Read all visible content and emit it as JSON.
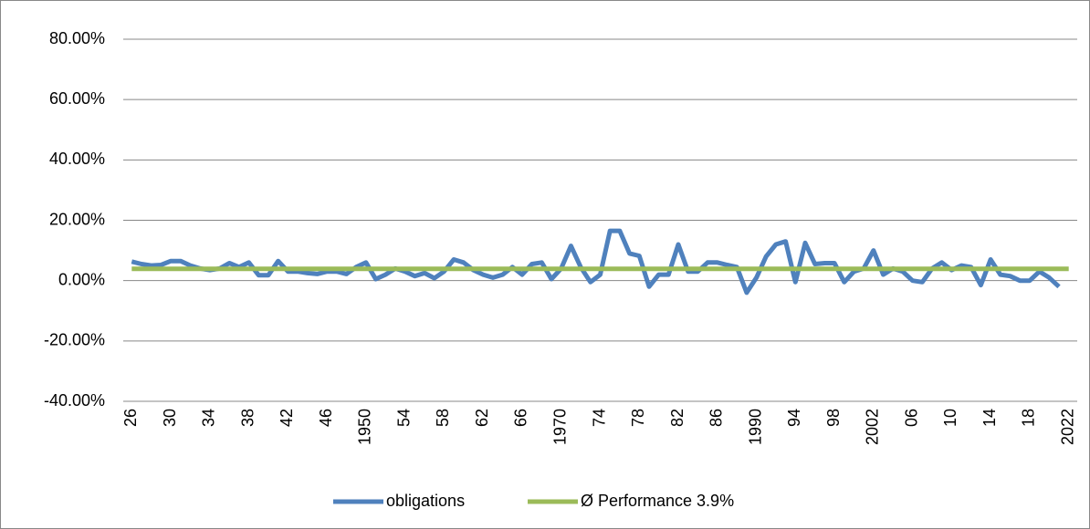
{
  "chart_data": {
    "type": "line",
    "categories": [
      "26",
      null,
      null,
      null,
      "30",
      null,
      null,
      null,
      "34",
      null,
      null,
      null,
      "38",
      null,
      null,
      null,
      "42",
      null,
      null,
      null,
      "46",
      null,
      null,
      null,
      "1950",
      null,
      null,
      null,
      "54",
      null,
      null,
      null,
      "58",
      null,
      null,
      null,
      "62",
      null,
      null,
      null,
      "66",
      null,
      null,
      null,
      "1970",
      null,
      null,
      null,
      "74",
      null,
      null,
      null,
      "78",
      null,
      null,
      null,
      "82",
      null,
      null,
      null,
      "86",
      null,
      null,
      null,
      "1990",
      null,
      null,
      null,
      "94",
      null,
      null,
      null,
      "98",
      null,
      null,
      null,
      "2002",
      null,
      null,
      null,
      "06",
      null,
      null,
      null,
      "10",
      null,
      null,
      null,
      "14",
      null,
      null,
      null,
      "18",
      null,
      null,
      null,
      "2022"
    ],
    "series": [
      {
        "name": "obligations",
        "color": "#4f81bd",
        "values": [
          6.3,
          5.5,
          5.0,
          5.2,
          6.5,
          6.5,
          5.0,
          4.0,
          3.5,
          4.0,
          5.8,
          4.5,
          6.0,
          1.8,
          1.8,
          6.5,
          3.0,
          3.0,
          2.5,
          2.2,
          3.0,
          3.0,
          2.2,
          4.5,
          6.0,
          0.5,
          2.0,
          4.0,
          3.0,
          1.5,
          2.5,
          0.8,
          3.0,
          7.0,
          6.0,
          3.5,
          2.0,
          1.0,
          2.0,
          4.5,
          2.0,
          5.5,
          6.0,
          0.5,
          4.0,
          11.5,
          4.5,
          -0.5,
          2.0,
          16.5,
          16.5,
          9.0,
          8.2,
          -2.0,
          2.0,
          2.0,
          12.0,
          3.0,
          3.0,
          6.0,
          6.0,
          5.2,
          4.5,
          -4.0,
          1.0,
          8.0,
          12.0,
          13.0,
          -0.5,
          12.5,
          5.5,
          5.8,
          5.8,
          -0.5,
          3.0,
          4.0,
          10.0,
          2.0,
          4.0,
          3.0,
          0,
          -0.5,
          4.0,
          6.0,
          3.5,
          5.0,
          4.5,
          -1.5,
          7.0,
          2.0,
          1.5,
          0,
          0,
          3.0,
          1.0,
          -2.0,
          null
        ]
      },
      {
        "name": "Ø Performance 3.9%",
        "color": "#9bbb59",
        "values": [
          3.9,
          3.9,
          3.9,
          3.9,
          3.9,
          3.9,
          3.9,
          3.9,
          3.9,
          3.9,
          3.9,
          3.9,
          3.9,
          3.9,
          3.9,
          3.9,
          3.9,
          3.9,
          3.9,
          3.9,
          3.9,
          3.9,
          3.9,
          3.9,
          3.9,
          3.9,
          3.9,
          3.9,
          3.9,
          3.9,
          3.9,
          3.9,
          3.9,
          3.9,
          3.9,
          3.9,
          3.9,
          3.9,
          3.9,
          3.9,
          3.9,
          3.9,
          3.9,
          3.9,
          3.9,
          3.9,
          3.9,
          3.9,
          3.9,
          3.9,
          3.9,
          3.9,
          3.9,
          3.9,
          3.9,
          3.9,
          3.9,
          3.9,
          3.9,
          3.9,
          3.9,
          3.9,
          3.9,
          3.9,
          3.9,
          3.9,
          3.9,
          3.9,
          3.9,
          3.9,
          3.9,
          3.9,
          3.9,
          3.9,
          3.9,
          3.9,
          3.9,
          3.9,
          3.9,
          3.9,
          3.9,
          3.9,
          3.9,
          3.9,
          3.9,
          3.9,
          3.9,
          3.9,
          3.9,
          3.9,
          3.9,
          3.9,
          3.9,
          3.9,
          3.9,
          3.9,
          3.9
        ]
      }
    ],
    "ylim": [
      -40,
      80
    ],
    "yticks": [
      {
        "value": -40,
        "label": "-40.00%"
      },
      {
        "value": -20,
        "label": "-20.00%"
      },
      {
        "value": 0,
        "label": "0.00%"
      },
      {
        "value": 20,
        "label": "20.00%"
      },
      {
        "value": 40,
        "label": "40.00%"
      },
      {
        "value": 60,
        "label": "60.00%"
      },
      {
        "value": 80,
        "label": "80.00%"
      }
    ],
    "grid": true,
    "legend": "bottom"
  }
}
